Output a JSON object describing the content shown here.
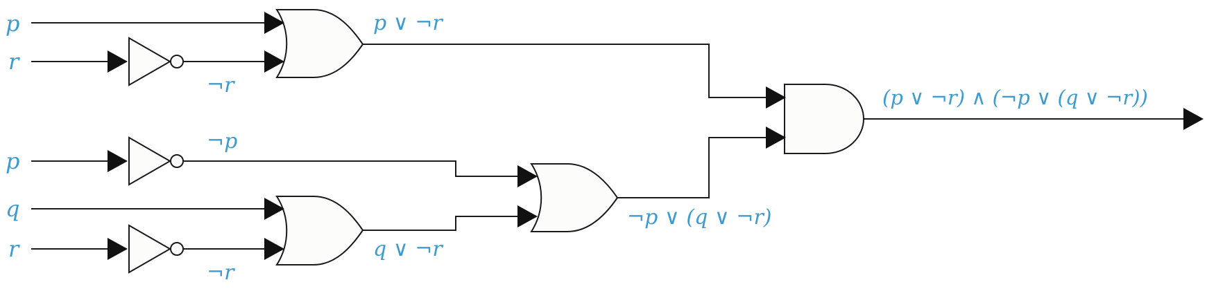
{
  "diagram": {
    "colors": {
      "label": "#3d9bd1",
      "line": "#1a1a1a",
      "gate_fill": "#fcfcfb",
      "arrowhead": "#111111"
    },
    "inputs": [
      {
        "id": "in-p1",
        "label": "p"
      },
      {
        "id": "in-r1",
        "label": "r"
      },
      {
        "id": "in-p2",
        "label": "p"
      },
      {
        "id": "in-q",
        "label": "q"
      },
      {
        "id": "in-r2",
        "label": "r"
      }
    ],
    "gates": [
      {
        "id": "not-r1",
        "type": "NOT",
        "output_label": "¬r"
      },
      {
        "id": "or-top",
        "type": "OR",
        "output_label": "p ∨ ¬r"
      },
      {
        "id": "not-p",
        "type": "NOT",
        "output_label": "¬p"
      },
      {
        "id": "not-r2",
        "type": "NOT",
        "output_label": "¬r"
      },
      {
        "id": "or-bottom",
        "type": "OR",
        "output_label": "q ∨ ¬r"
      },
      {
        "id": "or-middle",
        "type": "OR",
        "output_label": "¬p ∨ (q ∨ ¬r)"
      },
      {
        "id": "and-final",
        "type": "AND",
        "output_label": "(p ∨ ¬r) ∧ (¬p ∨ (q ∨ ¬r))"
      }
    ]
  }
}
